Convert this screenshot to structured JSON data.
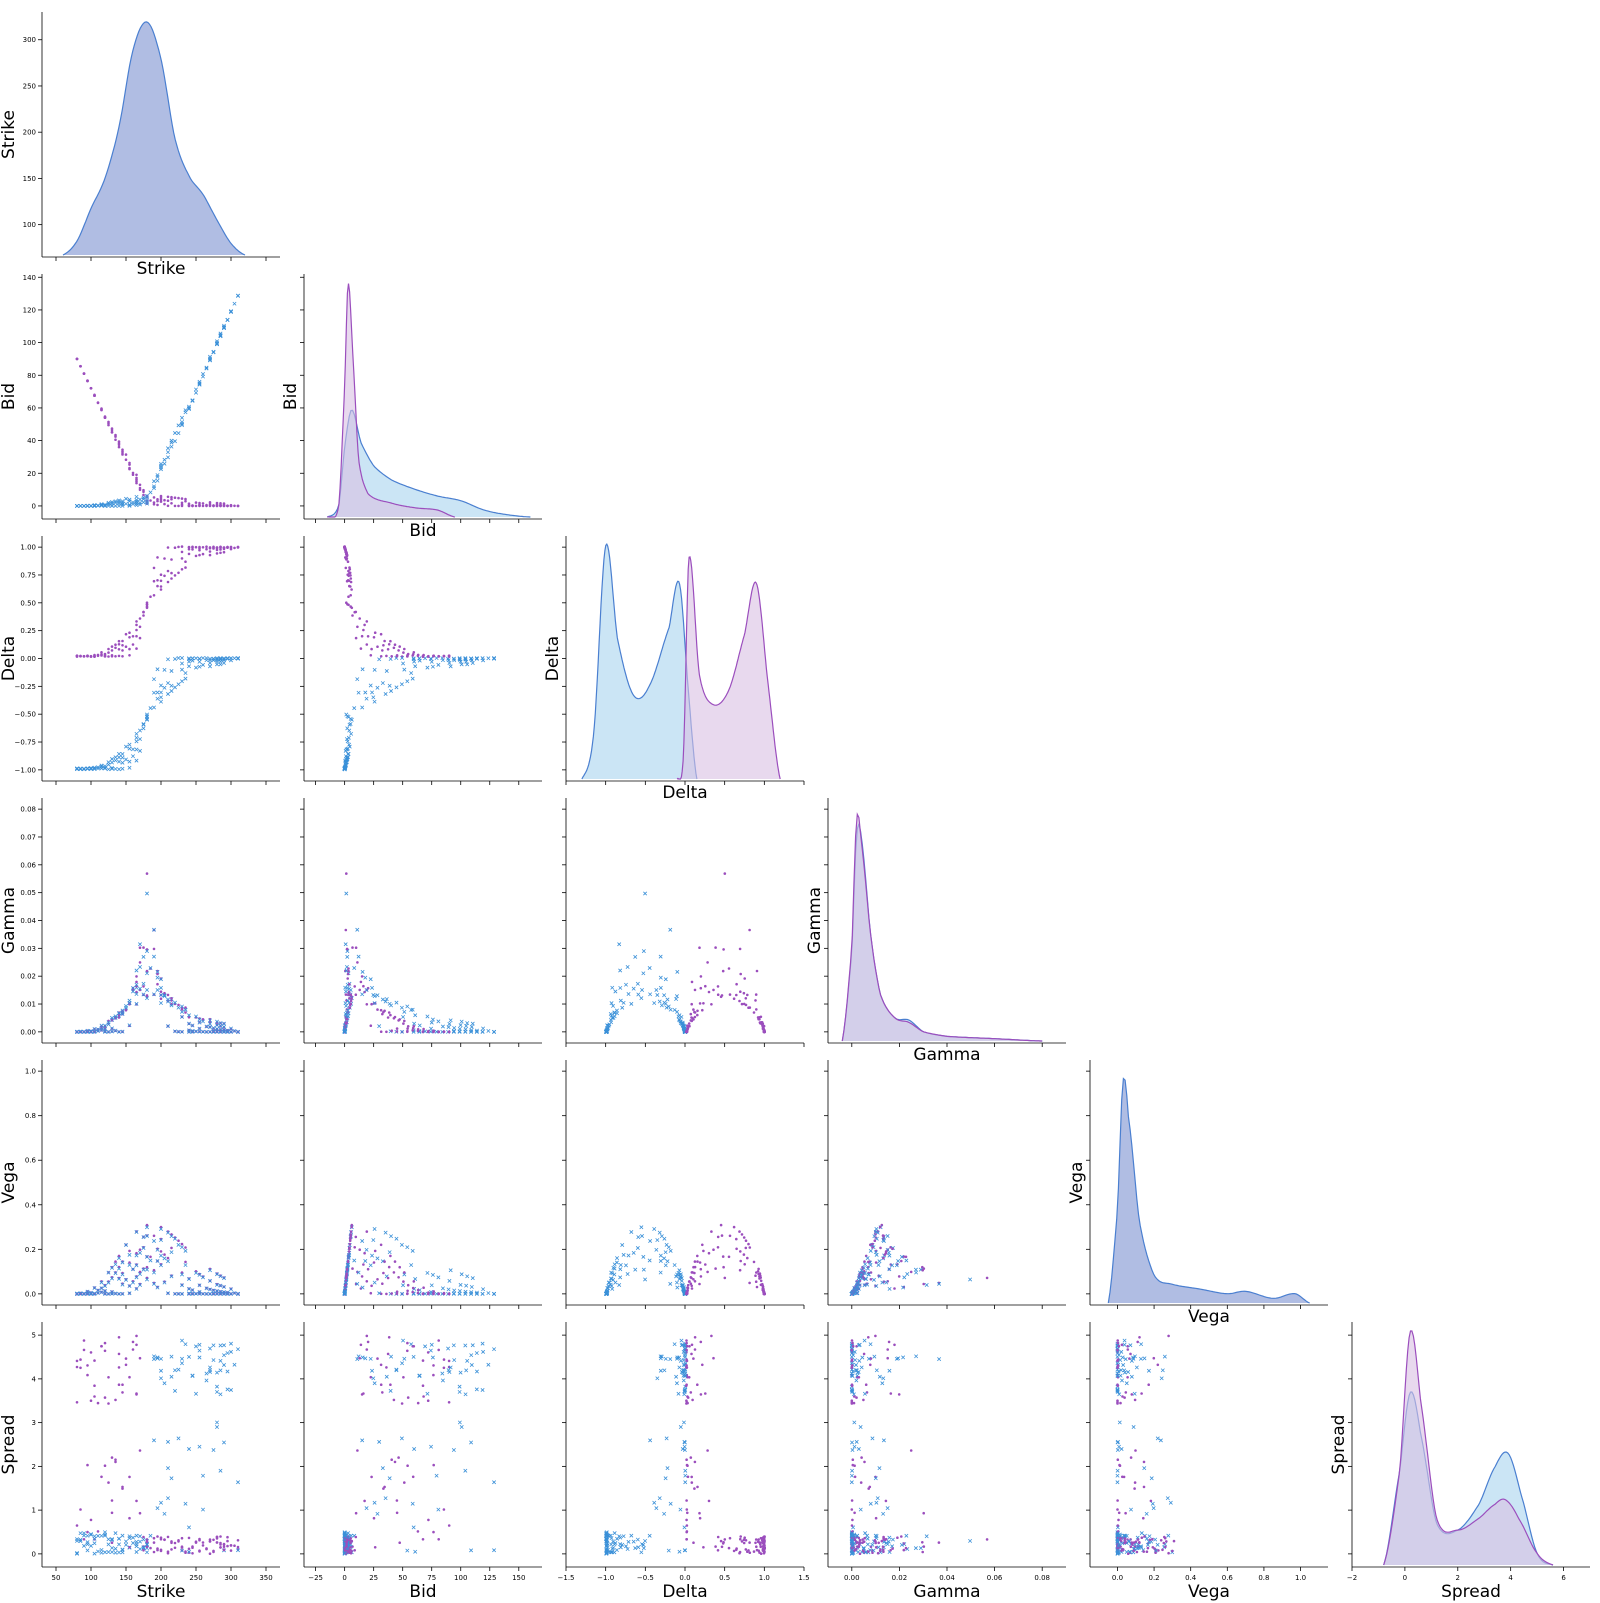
{
  "colors": {
    "puts": "#9b4ebd",
    "calls": "#3a90d8",
    "calls_kde_fill": "#a8d4ef",
    "puts_kde_fill": "#d9bfe3",
    "overlap_fill": "#a2b1de",
    "kde_line_blue": "#4a7fd0"
  },
  "chart_data": {
    "type": "pairplot",
    "variables": [
      "Strike",
      "Bid",
      "Delta",
      "Gamma",
      "Vega",
      "Spread"
    ],
    "corner": true,
    "grid": false,
    "legend": "none",
    "series": [
      {
        "marker": "dot",
        "color": "#9b4ebd"
      },
      {
        "marker": "x",
        "color": "#3a90d8"
      }
    ],
    "axes": {
      "Strike": {
        "lim": [
          30,
          370
        ],
        "ticks": [
          50,
          100,
          150,
          200,
          250,
          300,
          350
        ],
        "tick_labels": [
          "50",
          "100",
          "150",
          "200",
          "250",
          "300",
          "350"
        ]
      },
      "Bid": {
        "lim": [
          -35,
          170
        ],
        "ticks": [
          -25,
          0,
          25,
          50,
          75,
          100,
          125,
          150
        ],
        "tick_labels": [
          "−25",
          "0",
          "25",
          "50",
          "75",
          "100",
          "125",
          "150"
        ]
      },
      "Delta": {
        "lim": [
          -1.5,
          1.5
        ],
        "ticks": [
          -1.5,
          -1.0,
          -0.5,
          0.0,
          0.5,
          1.0,
          1.5
        ],
        "tick_labels": [
          "−1.5",
          "−1.0",
          "−0.5",
          "0.0",
          "0.5",
          "1.0",
          "1.5"
        ]
      },
      "Gamma": {
        "lim": [
          -0.01,
          0.09
        ],
        "ticks": [
          0.0,
          0.02,
          0.04,
          0.06,
          0.08
        ],
        "tick_labels": [
          "0.00",
          "0.02",
          "0.04",
          "0.06",
          "0.08"
        ]
      },
      "Vega": {
        "lim": [
          -0.15,
          1.15
        ],
        "ticks": [
          0.0,
          0.2,
          0.4,
          0.6,
          0.8,
          1.0
        ],
        "tick_labels": [
          "0.0",
          "0.2",
          "0.4",
          "0.6",
          "0.8",
          "1.0"
        ]
      },
      "Spread": {
        "lim": [
          -2,
          7
        ],
        "ticks": [
          -2,
          0,
          2,
          4,
          6
        ],
        "tick_labels": [
          "−2",
          "0",
          "2",
          "4",
          "6"
        ]
      }
    },
    "y_axes": {
      "Strike": {
        "lim": [
          65,
          330
        ],
        "ticks": [
          100,
          150,
          200,
          250,
          300
        ],
        "tick_labels": [
          "100",
          "150",
          "200",
          "250",
          "300"
        ]
      },
      "Bid": {
        "lim": [
          -8,
          142
        ],
        "ticks": [
          0,
          20,
          40,
          60,
          80,
          100,
          120,
          140
        ],
        "tick_labels": [
          "0",
          "20",
          "40",
          "60",
          "80",
          "100",
          "120",
          "140"
        ]
      },
      "Delta": {
        "lim": [
          -1.1,
          1.1
        ],
        "ticks": [
          -1.0,
          -0.75,
          -0.5,
          -0.25,
          0.0,
          0.25,
          0.5,
          0.75,
          1.0
        ],
        "tick_labels": [
          "−1.00",
          "−0.75",
          "−0.50",
          "−0.25",
          "0.00",
          "0.25",
          "0.50",
          "0.75",
          "1.00"
        ]
      },
      "Gamma": {
        "lim": [
          -0.004,
          0.084
        ],
        "ticks": [
          0.0,
          0.01,
          0.02,
          0.03,
          0.04,
          0.05,
          0.06,
          0.07,
          0.08
        ],
        "tick_labels": [
          "0.00",
          "0.01",
          "0.02",
          "0.03",
          "0.04",
          "0.05",
          "0.06",
          "0.07",
          "0.08"
        ]
      },
      "Vega": {
        "lim": [
          -0.05,
          1.05
        ],
        "ticks": [
          0.0,
          0.2,
          0.4,
          0.6,
          0.8,
          1.0
        ],
        "tick_labels": [
          "0.0",
          "0.2",
          "0.4",
          "0.6",
          "0.8",
          "1.0"
        ]
      },
      "Spread": {
        "lim": [
          -0.3,
          5.3
        ],
        "ticks": [
          0,
          1,
          2,
          3,
          4,
          5
        ],
        "tick_labels": [
          "0",
          "1",
          "2",
          "3",
          "4",
          "5"
        ]
      }
    },
    "diagonal_kde": {
      "Strike": {
        "combined": [
          [
            60,
            0
          ],
          [
            80,
            0.06
          ],
          [
            100,
            0.2
          ],
          [
            120,
            0.33
          ],
          [
            140,
            0.55
          ],
          [
            160,
            0.88
          ],
          [
            180,
            1.0
          ],
          [
            200,
            0.84
          ],
          [
            220,
            0.5
          ],
          [
            240,
            0.34
          ],
          [
            260,
            0.26
          ],
          [
            280,
            0.15
          ],
          [
            300,
            0.05
          ],
          [
            320,
            0
          ]
        ]
      },
      "Bid": {
        "puts": [
          [
            -15,
            0
          ],
          [
            -5,
            0.05
          ],
          [
            0,
            0.55
          ],
          [
            3,
            1.0
          ],
          [
            7,
            0.7
          ],
          [
            12,
            0.25
          ],
          [
            20,
            0.1
          ],
          [
            40,
            0.06
          ],
          [
            60,
            0.04
          ],
          [
            80,
            0.03
          ],
          [
            95,
            0
          ]
        ],
        "calls": [
          [
            -15,
            0
          ],
          [
            -5,
            0.05
          ],
          [
            0,
            0.3
          ],
          [
            6,
            0.46
          ],
          [
            14,
            0.32
          ],
          [
            25,
            0.22
          ],
          [
            40,
            0.16
          ],
          [
            60,
            0.12
          ],
          [
            80,
            0.09
          ],
          [
            100,
            0.07
          ],
          [
            120,
            0.03
          ],
          [
            140,
            0.01
          ],
          [
            160,
            0
          ]
        ]
      },
      "Delta": {
        "calls": [
          [
            -1.3,
            0
          ],
          [
            -1.15,
            0.2
          ],
          [
            -1.0,
            1.0
          ],
          [
            -0.85,
            0.6
          ],
          [
            -0.65,
            0.36
          ],
          [
            -0.45,
            0.4
          ],
          [
            -0.2,
            0.65
          ],
          [
            -0.07,
            0.84
          ],
          [
            0.05,
            0.35
          ],
          [
            0.15,
            0
          ]
        ],
        "puts": [
          [
            -0.1,
            0
          ],
          [
            -0.02,
            0.1
          ],
          [
            0.05,
            0.95
          ],
          [
            0.18,
            0.45
          ],
          [
            0.35,
            0.32
          ],
          [
            0.55,
            0.38
          ],
          [
            0.75,
            0.62
          ],
          [
            0.9,
            0.84
          ],
          [
            1.05,
            0.4
          ],
          [
            1.2,
            0
          ]
        ]
      },
      "Gamma": {
        "puts": [
          [
            -0.004,
            0
          ],
          [
            0.0,
            0.4
          ],
          [
            0.002,
            0.95
          ],
          [
            0.004,
            0.85
          ],
          [
            0.008,
            0.45
          ],
          [
            0.012,
            0.2
          ],
          [
            0.018,
            0.1
          ],
          [
            0.024,
            0.08
          ],
          [
            0.03,
            0.04
          ],
          [
            0.04,
            0.02
          ],
          [
            0.06,
            0.01
          ],
          [
            0.08,
            0
          ]
        ],
        "calls": [
          [
            -0.004,
            0
          ],
          [
            0.0,
            0.38
          ],
          [
            0.002,
            0.88
          ],
          [
            0.004,
            0.87
          ],
          [
            0.008,
            0.45
          ],
          [
            0.012,
            0.2
          ],
          [
            0.018,
            0.1
          ],
          [
            0.024,
            0.09
          ],
          [
            0.03,
            0.04
          ],
          [
            0.04,
            0.02
          ],
          [
            0.06,
            0.01
          ],
          [
            0.08,
            0
          ]
        ]
      },
      "Vega": {
        "combined": [
          [
            -0.05,
            0
          ],
          [
            0.0,
            0.4
          ],
          [
            0.03,
            0.95
          ],
          [
            0.06,
            0.8
          ],
          [
            0.12,
            0.35
          ],
          [
            0.2,
            0.12
          ],
          [
            0.3,
            0.08
          ],
          [
            0.45,
            0.06
          ],
          [
            0.6,
            0.04
          ],
          [
            0.7,
            0.05
          ],
          [
            0.85,
            0.02
          ],
          [
            0.97,
            0.04
          ],
          [
            1.05,
            0
          ]
        ]
      },
      "Spread": {
        "puts": [
          [
            -0.8,
            0
          ],
          [
            -0.2,
            0.4
          ],
          [
            0.2,
            1.0
          ],
          [
            0.6,
            0.7
          ],
          [
            1.2,
            0.2
          ],
          [
            2.0,
            0.15
          ],
          [
            2.8,
            0.2
          ],
          [
            3.4,
            0.26
          ],
          [
            3.8,
            0.28
          ],
          [
            4.3,
            0.2
          ],
          [
            5.0,
            0.05
          ],
          [
            5.6,
            0
          ]
        ],
        "calls": [
          [
            -0.8,
            0
          ],
          [
            -0.2,
            0.4
          ],
          [
            0.2,
            0.74
          ],
          [
            0.6,
            0.56
          ],
          [
            1.2,
            0.18
          ],
          [
            2.0,
            0.15
          ],
          [
            2.8,
            0.26
          ],
          [
            3.4,
            0.42
          ],
          [
            3.9,
            0.48
          ],
          [
            4.4,
            0.3
          ],
          [
            5.0,
            0.05
          ],
          [
            5.6,
            0
          ]
        ]
      }
    }
  }
}
